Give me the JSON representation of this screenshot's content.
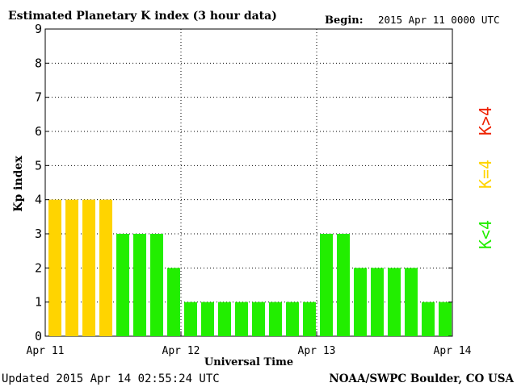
{
  "chart_data": {
    "type": "bar",
    "title": "Estimated Planetary K index (3 hour data)",
    "begin_label": "Begin:",
    "begin_value": "2015 Apr 11 0000 UTC",
    "ylabel": "Kp index",
    "xlabel": "Universal Time",
    "ylim": [
      0,
      9
    ],
    "y_ticks": [
      "0",
      "1",
      "2",
      "3",
      "4",
      "5",
      "6",
      "7",
      "8",
      "9"
    ],
    "x_ticks": [
      "Apr 11",
      "Apr 12",
      "Apr 13",
      "Apr 14"
    ],
    "grid": true,
    "values": [
      4,
      4,
      4,
      4,
      3,
      3,
      3,
      2,
      1,
      1,
      1,
      1,
      1,
      1,
      1,
      1,
      3,
      3,
      2,
      2,
      2,
      2,
      1,
      1
    ],
    "legend": [
      {
        "label": "K<4",
        "color": "#22ee00"
      },
      {
        "label": "K=4",
        "color": "#ffd400"
      },
      {
        "label": "K>4",
        "color": "#ee2200"
      }
    ]
  },
  "footer": {
    "updated": "Updated 2015 Apr 14 02:55:24 UTC",
    "source": "NOAA/SWPC Boulder, CO USA"
  },
  "colors": {
    "low": "#22ee00",
    "storm_threshold": "#ffd400",
    "storm": "#ee2200"
  }
}
